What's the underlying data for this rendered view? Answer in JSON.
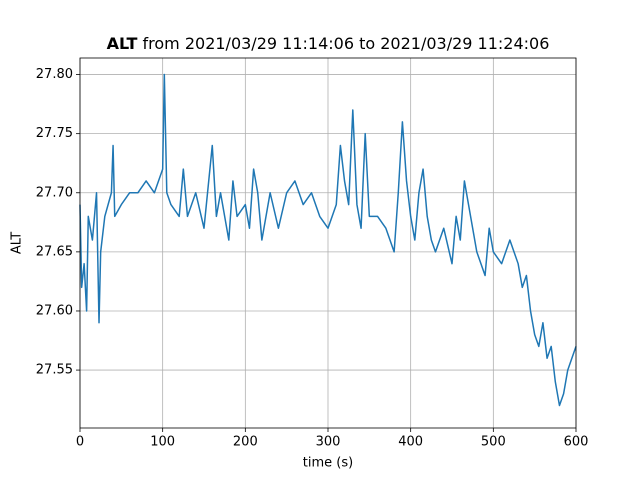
{
  "chart_data": {
    "type": "line",
    "title_bold": "ALT",
    "title": "from 2021/03/29 11:14:06 to 2021/03/29 11:24:06",
    "x_label": "time (s)",
    "y_label": "ALT",
    "grid": true,
    "xlim": [
      0,
      600
    ],
    "ylim": [
      27.501,
      27.814
    ],
    "xticks": [
      0,
      100,
      200,
      300,
      400,
      500,
      600
    ],
    "yticks": [
      27.55,
      {
        "value": 27.6,
        "label": "27.60"
      },
      27.65,
      {
        "value": 27.7,
        "label": "27.70"
      },
      27.75,
      {
        "value": 27.8,
        "label": "27.80"
      }
    ],
    "series": [
      {
        "color": "#1f77b4",
        "x": [
          0,
          2,
          5,
          8,
          10,
          15,
          20,
          23,
          25,
          30,
          38,
          40,
          42,
          50,
          60,
          70,
          80,
          90,
          100,
          102,
          105,
          110,
          120,
          125,
          130,
          140,
          150,
          160,
          165,
          170,
          180,
          185,
          190,
          200,
          205,
          210,
          215,
          220,
          230,
          240,
          250,
          260,
          270,
          280,
          290,
          300,
          310,
          315,
          320,
          325,
          330,
          335,
          340,
          345,
          350,
          360,
          370,
          380,
          385,
          390,
          395,
          400,
          405,
          410,
          415,
          420,
          425,
          430,
          440,
          450,
          455,
          460,
          465,
          470,
          480,
          490,
          495,
          500,
          510,
          520,
          530,
          535,
          540,
          545,
          550,
          555,
          560,
          565,
          570,
          575,
          580,
          585,
          590,
          595,
          600
        ],
        "values": [
          27.69,
          27.62,
          27.64,
          27.6,
          27.68,
          27.66,
          27.7,
          27.59,
          27.65,
          27.68,
          27.7,
          27.74,
          27.68,
          27.69,
          27.7,
          27.7,
          27.71,
          27.7,
          27.72,
          27.8,
          27.7,
          27.69,
          27.68,
          27.72,
          27.68,
          27.7,
          27.67,
          27.74,
          27.68,
          27.7,
          27.66,
          27.71,
          27.68,
          27.69,
          27.67,
          27.72,
          27.7,
          27.66,
          27.7,
          27.67,
          27.7,
          27.71,
          27.69,
          27.7,
          27.68,
          27.67,
          27.69,
          27.74,
          27.71,
          27.69,
          27.77,
          27.69,
          27.67,
          27.75,
          27.68,
          27.68,
          27.67,
          27.65,
          27.7,
          27.76,
          27.71,
          27.68,
          27.66,
          27.7,
          27.72,
          27.68,
          27.66,
          27.65,
          27.67,
          27.64,
          27.68,
          27.66,
          27.71,
          27.69,
          27.65,
          27.63,
          27.67,
          27.65,
          27.64,
          27.66,
          27.64,
          27.62,
          27.63,
          27.6,
          27.58,
          27.57,
          27.59,
          27.56,
          27.57,
          27.54,
          27.52,
          27.53,
          27.55,
          27.56,
          27.57
        ]
      }
    ]
  }
}
